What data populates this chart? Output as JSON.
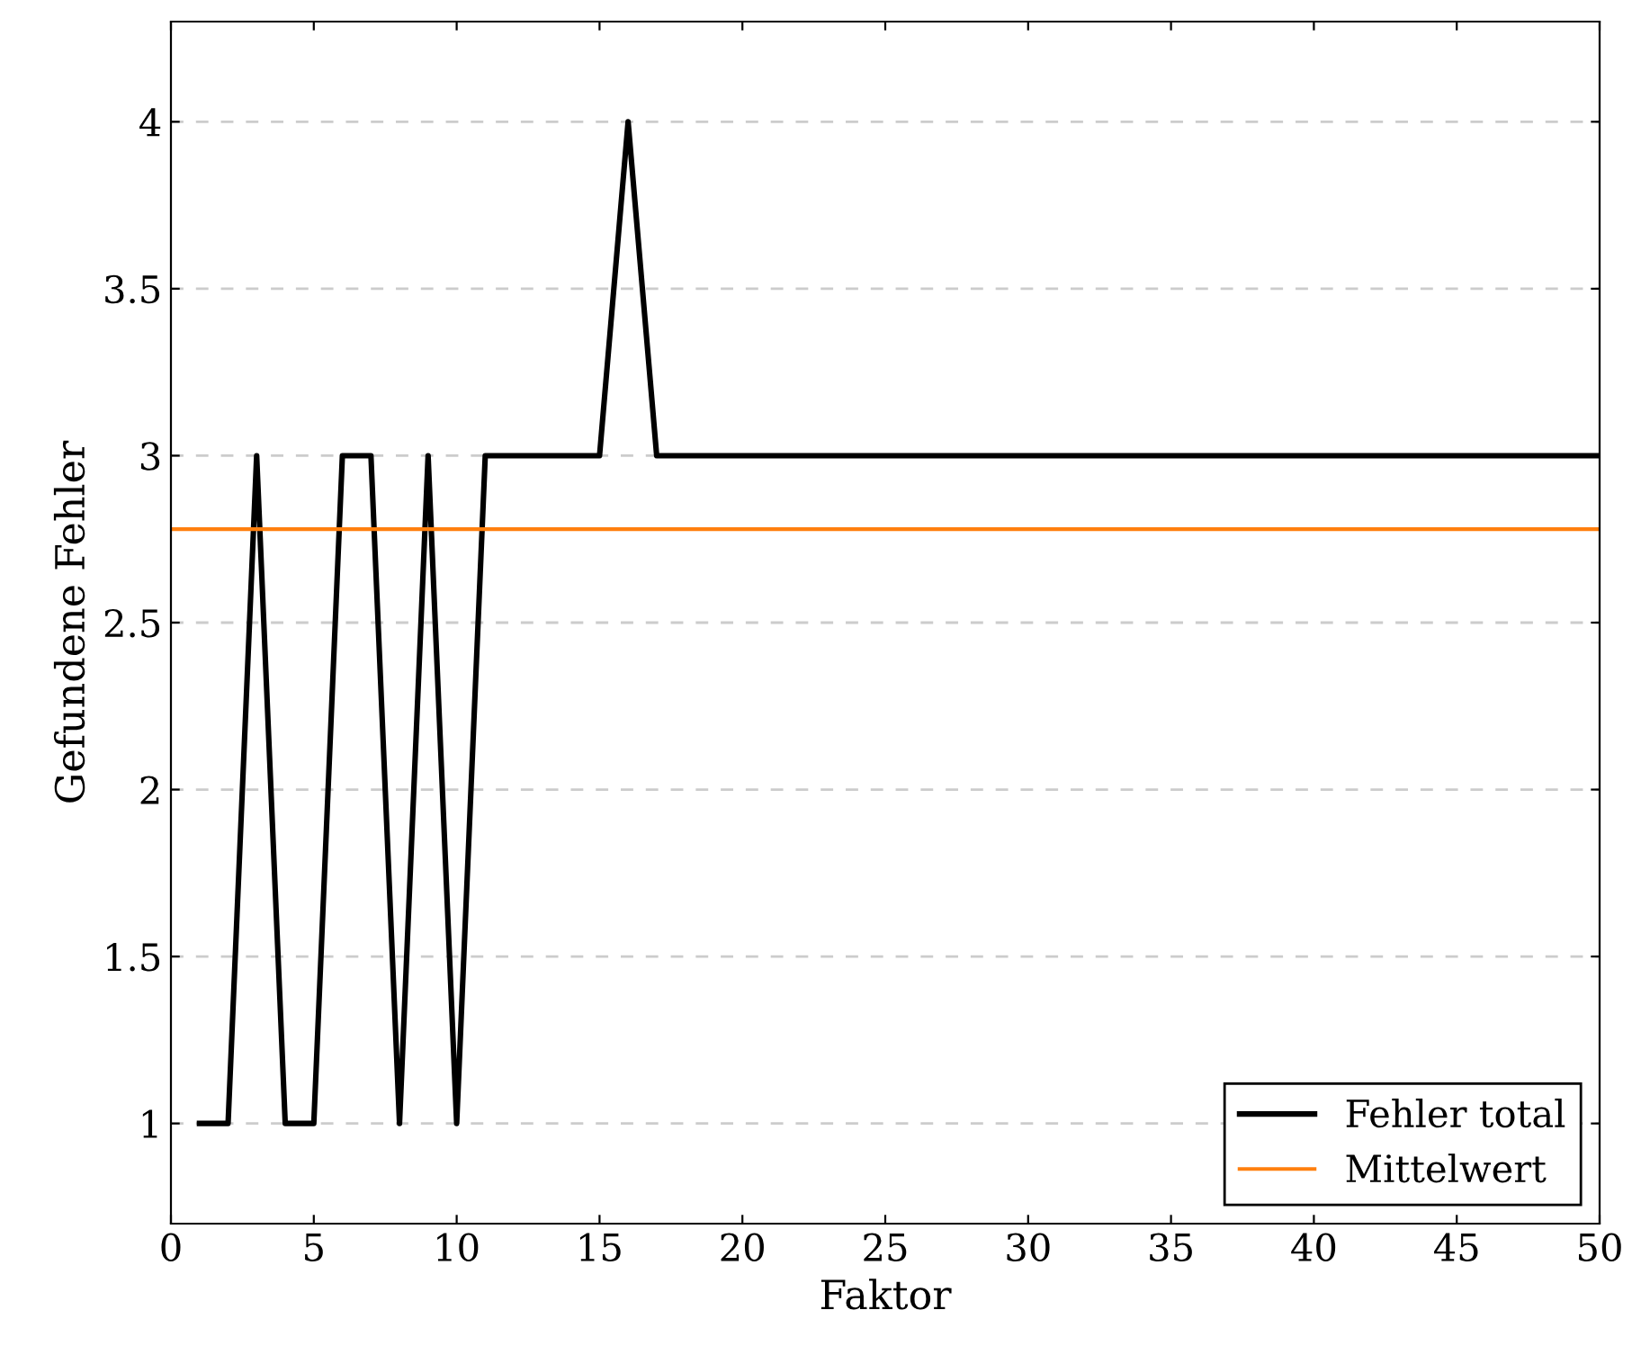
{
  "chart_data": {
    "type": "line",
    "xlabel": "Faktor",
    "ylabel": "Gefundene Fehler",
    "x": [
      1,
      2,
      3,
      4,
      5,
      6,
      7,
      8,
      9,
      10,
      11,
      12,
      13,
      14,
      15,
      16,
      17,
      18,
      19,
      20,
      21,
      22,
      23,
      24,
      25,
      26,
      27,
      28,
      29,
      30,
      31,
      32,
      33,
      34,
      35,
      36,
      37,
      38,
      39,
      40,
      41,
      42,
      43,
      44,
      45,
      46,
      47,
      48,
      49,
      50
    ],
    "series": [
      {
        "name": "Fehler total",
        "color": "#000000",
        "values": [
          1,
          1,
          3,
          1,
          1,
          3,
          3,
          1,
          3,
          1,
          3,
          3,
          3,
          3,
          3,
          4,
          3,
          3,
          3,
          3,
          3,
          3,
          3,
          3,
          3,
          3,
          3,
          3,
          3,
          3,
          3,
          3,
          3,
          3,
          3,
          3,
          3,
          3,
          3,
          3,
          3,
          3,
          3,
          3,
          3,
          3,
          3,
          3,
          3,
          3
        ]
      }
    ],
    "ref_lines": [
      {
        "axis": "y",
        "value": 2.78,
        "label": "Mittelwert",
        "color": "#ff7f0e"
      }
    ],
    "xlim": [
      0,
      50
    ],
    "ylim": [
      0.7,
      4.3
    ],
    "xticks": [
      0,
      5,
      10,
      15,
      20,
      25,
      30,
      35,
      40,
      45,
      50
    ],
    "yticks": [
      1,
      1.5,
      2,
      2.5,
      3,
      3.5,
      4
    ],
    "grid": "y",
    "legend": "bottom right",
    "line_style": "solid",
    "marker": "none"
  }
}
